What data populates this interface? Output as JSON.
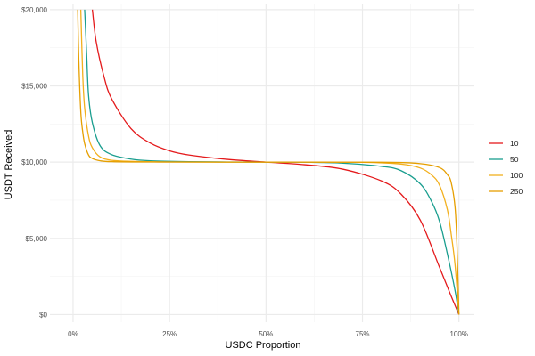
{
  "chart_data": {
    "type": "line",
    "title": "",
    "xlabel": "USDC Proportion",
    "ylabel": "USDT Received",
    "xlim": [
      -0.06,
      1.04
    ],
    "ylim": [
      -500,
      20400
    ],
    "x_ticks": [
      0,
      0.25,
      0.5,
      0.75,
      1.0
    ],
    "x_tick_labels": [
      "0%",
      "25%",
      "50%",
      "75%",
      "100%"
    ],
    "y_ticks": [
      0,
      5000,
      10000,
      15000,
      20000
    ],
    "y_tick_labels": [
      "$0",
      "$5,000",
      "$10,000",
      "$15,000",
      "$20,000"
    ],
    "grid": true,
    "legend_position": "right",
    "series": [
      {
        "name": "10",
        "color": "#e41a1c",
        "values": [
          [
            0.05,
            20000
          ],
          [
            0.06,
            17880
          ],
          [
            0.08,
            15620
          ],
          [
            0.1,
            14150
          ],
          [
            0.15,
            12200
          ],
          [
            0.2,
            11250
          ],
          [
            0.25,
            10740
          ],
          [
            0.3,
            10470
          ],
          [
            0.4,
            10180
          ],
          [
            0.5,
            10000
          ],
          [
            0.6,
            9830
          ],
          [
            0.7,
            9530
          ],
          [
            0.8,
            8760
          ],
          [
            0.85,
            7900
          ],
          [
            0.9,
            6190
          ],
          [
            0.95,
            3080
          ],
          [
            0.98,
            1200
          ],
          [
            1.0,
            0
          ]
        ]
      },
      {
        "name": "50",
        "color": "#1a9e8f",
        "values": [
          [
            0.03,
            20000
          ],
          [
            0.035,
            17200
          ],
          [
            0.04,
            14420
          ],
          [
            0.05,
            12580
          ],
          [
            0.07,
            11080
          ],
          [
            0.1,
            10490
          ],
          [
            0.15,
            10200
          ],
          [
            0.2,
            10090
          ],
          [
            0.3,
            10030
          ],
          [
            0.4,
            10010
          ],
          [
            0.5,
            10000
          ],
          [
            0.6,
            9990
          ],
          [
            0.7,
            9930
          ],
          [
            0.8,
            9720
          ],
          [
            0.85,
            9440
          ],
          [
            0.9,
            8570
          ],
          [
            0.93,
            7370
          ],
          [
            0.95,
            6090
          ],
          [
            0.97,
            3990
          ],
          [
            0.99,
            1560
          ],
          [
            1.0,
            0
          ]
        ]
      },
      {
        "name": "100",
        "color": "#f2b01e",
        "values": [
          [
            0.02,
            20000
          ],
          [
            0.025,
            15730
          ],
          [
            0.03,
            13550
          ],
          [
            0.04,
            11720
          ],
          [
            0.05,
            10940
          ],
          [
            0.07,
            10340
          ],
          [
            0.1,
            10120
          ],
          [
            0.15,
            10050
          ],
          [
            0.25,
            10010
          ],
          [
            0.5,
            10000
          ],
          [
            0.75,
            9990
          ],
          [
            0.85,
            9870
          ],
          [
            0.9,
            9610
          ],
          [
            0.93,
            9140
          ],
          [
            0.95,
            8470
          ],
          [
            0.97,
            6880
          ],
          [
            0.98,
            5260
          ],
          [
            0.99,
            3250
          ],
          [
            1.0,
            0
          ]
        ]
      },
      {
        "name": "250",
        "color": "#e69f00",
        "values": [
          [
            0.012,
            20000
          ],
          [
            0.015,
            16620
          ],
          [
            0.02,
            13300
          ],
          [
            0.025,
            11980
          ],
          [
            0.03,
            11210
          ],
          [
            0.04,
            10470
          ],
          [
            0.05,
            10240
          ],
          [
            0.07,
            10090
          ],
          [
            0.1,
            10030
          ],
          [
            0.2,
            10010
          ],
          [
            0.5,
            10000
          ],
          [
            0.8,
            9990
          ],
          [
            0.9,
            9900
          ],
          [
            0.95,
            9640
          ],
          [
            0.97,
            9180
          ],
          [
            0.98,
            8650
          ],
          [
            0.99,
            7030
          ],
          [
            0.995,
            4500
          ],
          [
            1.0,
            0
          ]
        ]
      }
    ]
  }
}
